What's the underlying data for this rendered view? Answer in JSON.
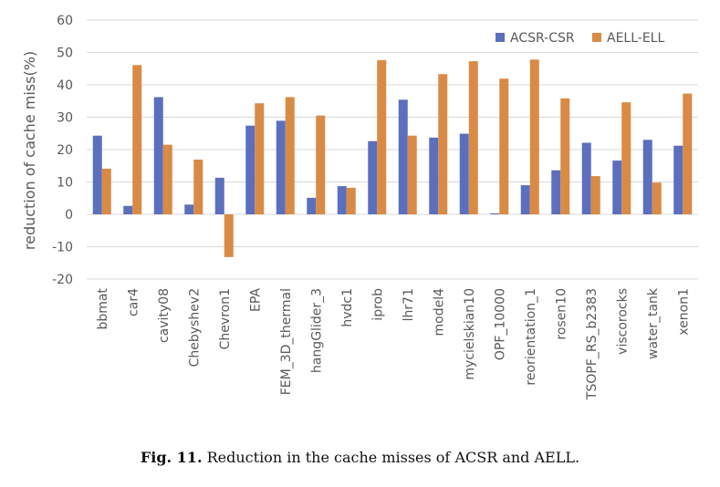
{
  "chart_data": {
    "type": "bar",
    "ylabel": "reduction of cache miss(%)",
    "ylim": [
      -20,
      60
    ],
    "yticks": [
      -20,
      -10,
      0,
      10,
      20,
      30,
      40,
      50,
      60
    ],
    "grid": true,
    "legend_position": "top-right",
    "categories": [
      "bbmat",
      "car4",
      "cavity08",
      "Chebyshev2",
      "Chevron1",
      "EPA",
      "FEM_3D_thermal",
      "hangGlider_3",
      "hvdc1",
      "iprob",
      "lhr71",
      "model4",
      "mycielskian10",
      "OPF_10000",
      "reorientation_1",
      "rosen10",
      "TSOPF_RS_b2383",
      "viscorocks",
      "water_tank",
      "xenon1"
    ],
    "series": [
      {
        "name": "ACSR-CSR",
        "color": "#5b6fbe",
        "values": [
          24.3,
          2.6,
          36.2,
          3.0,
          11.3,
          27.4,
          28.9,
          5.1,
          8.7,
          22.6,
          35.4,
          23.7,
          24.9,
          0.3,
          9.0,
          13.6,
          22.1,
          16.6,
          23.0,
          21.2
        ]
      },
      {
        "name": "AELL-ELL",
        "color": "#d98a45",
        "values": [
          14.1,
          46.1,
          21.5,
          16.9,
          -13.2,
          34.3,
          36.2,
          30.5,
          8.2,
          47.6,
          24.3,
          43.3,
          47.3,
          41.9,
          47.8,
          35.8,
          11.8,
          34.6,
          9.8,
          37.3
        ]
      }
    ]
  },
  "caption": {
    "label": "Fig. 11.",
    "text": "Reduction in the cache misses of ACSR and AELL."
  }
}
